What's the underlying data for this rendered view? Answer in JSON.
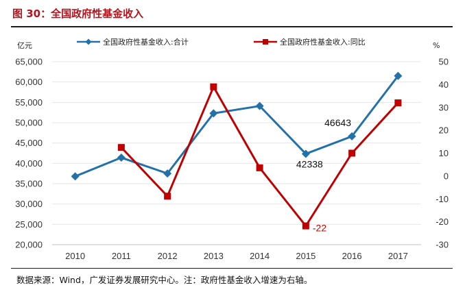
{
  "header": {
    "title": "图 30：全国政府性基金收入"
  },
  "footer": {
    "source": "数据来源：Wind，广发证券发展研究中心。注：政府性基金收入增速为右轴。"
  },
  "colors": {
    "total": "#2471a9",
    "yoy": "#c00000",
    "title": "#b5121b"
  },
  "chart_data": {
    "type": "line",
    "x": [
      "2010",
      "2011",
      "2012",
      "2013",
      "2014",
      "2015",
      "2016",
      "2017"
    ],
    "left_unit": "亿元",
    "right_unit": "%",
    "left_ylim": [
      20000,
      65000
    ],
    "left_ticks": [
      "20,000",
      "25,000",
      "30,000",
      "35,000",
      "40,000",
      "45,000",
      "50,000",
      "55,000",
      "60,000",
      "65,000"
    ],
    "right_ylim": [
      -30,
      50
    ],
    "right_ticks": [
      "-30",
      "-20",
      "-10",
      "0",
      "10",
      "20",
      "30",
      "40",
      "50"
    ],
    "legend_position": "top",
    "series": [
      {
        "name": "全国政府性基金收入:合计",
        "axis": "left",
        "marker": "diamond",
        "values": [
          36800,
          41400,
          37500,
          52300,
          54100,
          42338,
          46643,
          61500
        ]
      },
      {
        "name": "全国政府性基金收入:同比",
        "axis": "right",
        "marker": "square",
        "values": [
          null,
          12.5,
          -8.8,
          39.0,
          3.6,
          -21.8,
          10.0,
          32.0
        ]
      }
    ],
    "annotations": [
      {
        "series": 0,
        "index": 6,
        "text": "46643"
      },
      {
        "series": 0,
        "index": 5,
        "text": "42338"
      },
      {
        "series": 1,
        "index": 5,
        "text": "-22"
      }
    ]
  }
}
